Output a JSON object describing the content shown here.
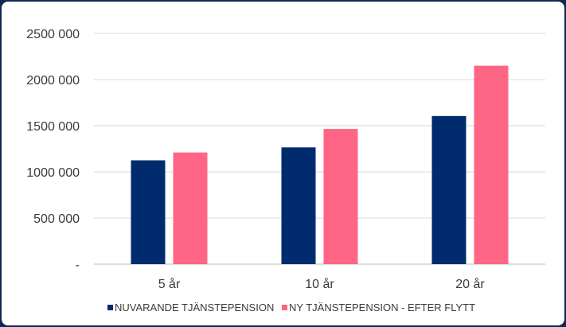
{
  "chart_data": {
    "type": "bar",
    "categories": [
      "5 år",
      "10 år",
      "20 år"
    ],
    "series": [
      {
        "name": "NUVARANDE TJÄNSTEPENSION",
        "color": "#002b6e",
        "values": [
          1125000,
          1265000,
          1605000
        ]
      },
      {
        "name": "NY TJÄNSTEPENSION - EFTER FLYTT",
        "color": "#ff6584",
        "values": [
          1210000,
          1465000,
          2150000
        ]
      }
    ],
    "ylim": [
      0,
      2500000
    ],
    "yticks": [
      0,
      500000,
      1000000,
      1500000,
      2000000,
      2500000
    ],
    "ytick_labels": [
      "-",
      "500 000",
      "1000 000",
      "1500 000",
      "2000 000",
      "2500 000"
    ],
    "grid": true,
    "legend_position": "bottom",
    "title": "",
    "xlabel": "",
    "ylabel": ""
  }
}
